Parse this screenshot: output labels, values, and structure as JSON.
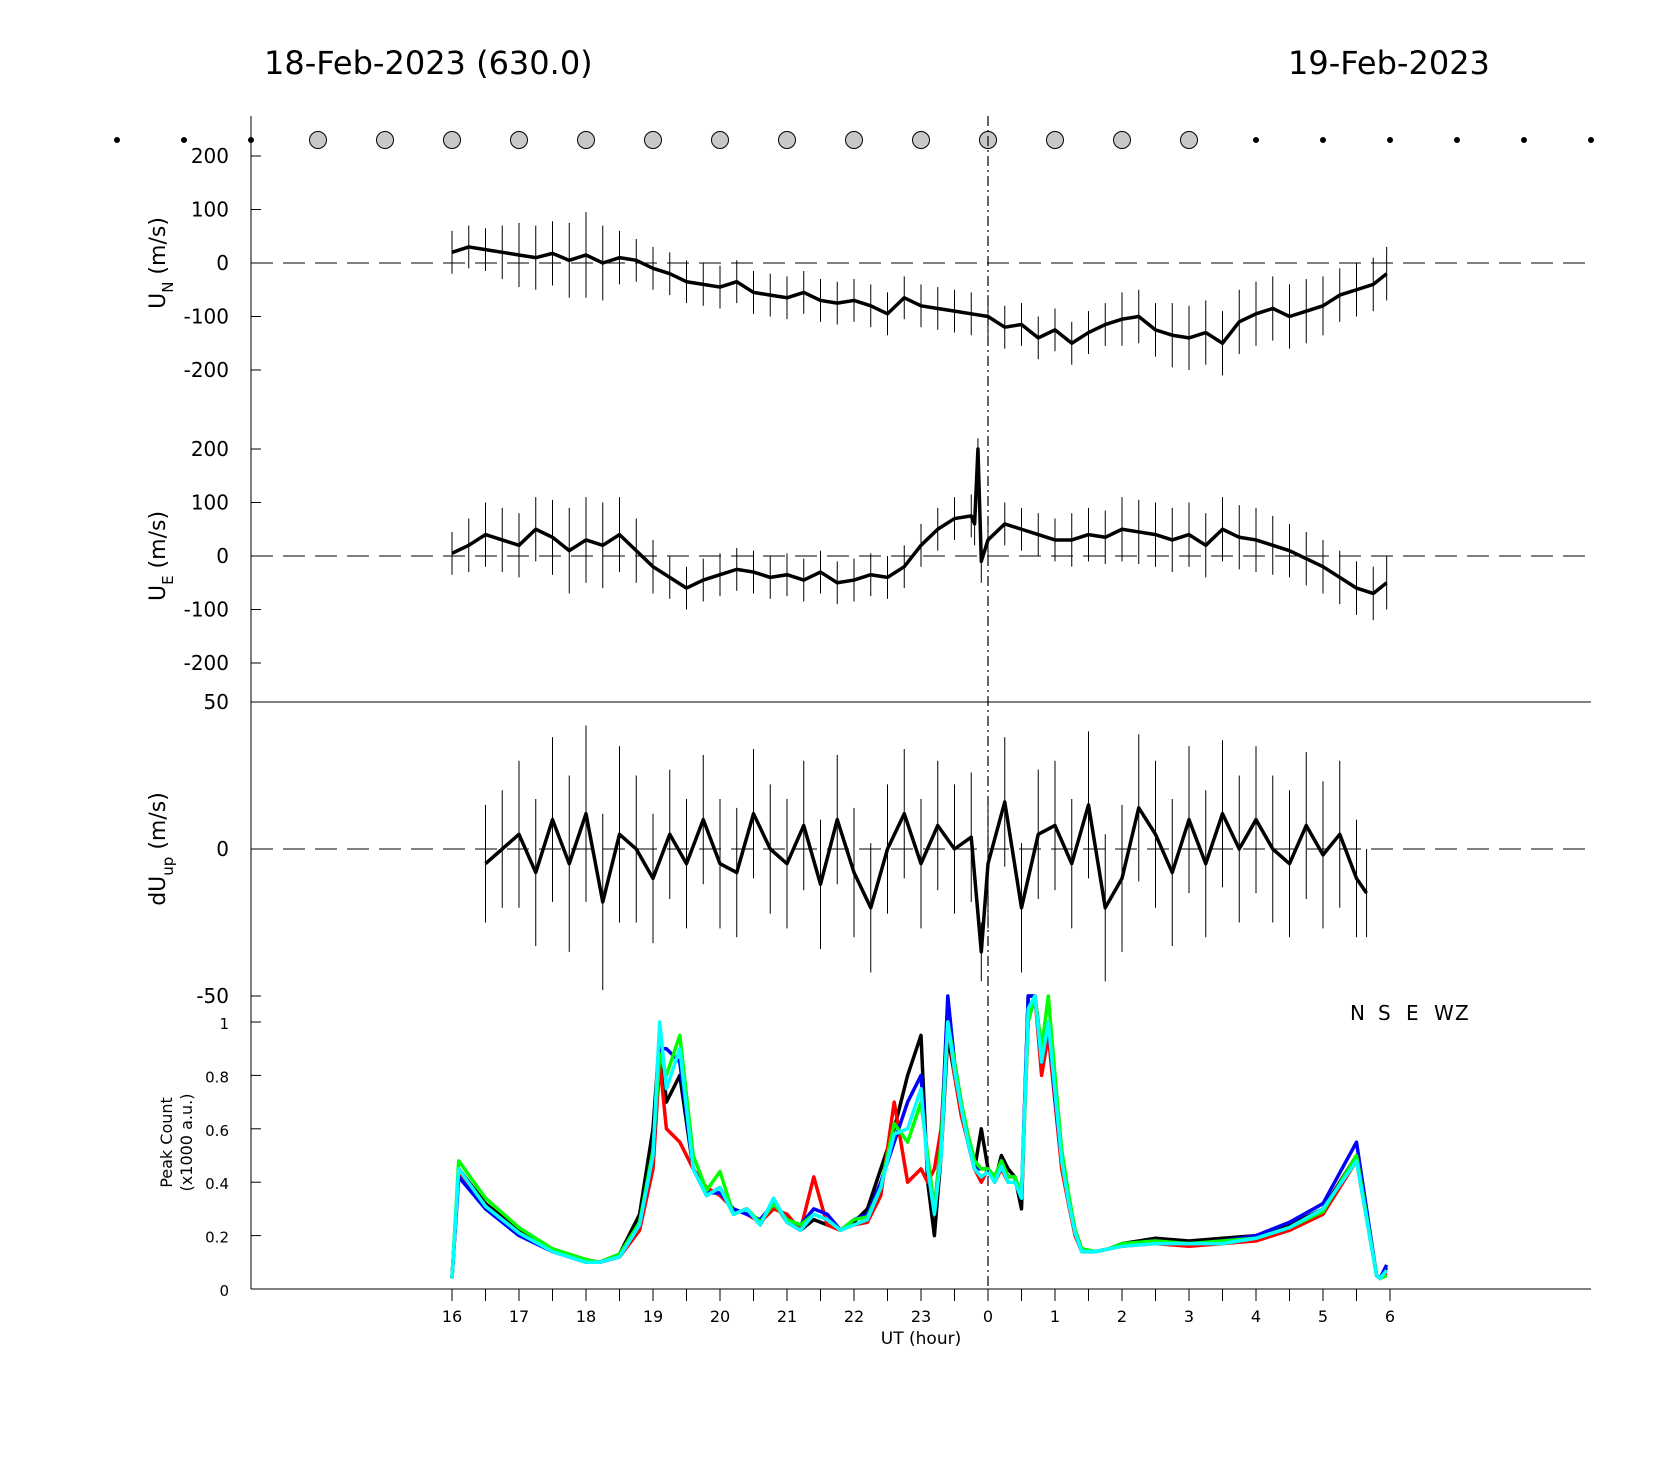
{
  "header": {
    "left_date": "18-Feb-2023 (630.0)",
    "right_date": "19-Feb-2023"
  },
  "moon_markers": {
    "hours": [
      -5,
      -4,
      -3,
      -2,
      -1,
      0,
      1,
      2,
      3,
      4,
      5,
      6,
      7,
      8,
      9,
      10,
      11,
      12,
      13,
      14,
      15,
      16,
      17
    ],
    "large_from": -2,
    "large_to": 11,
    "fill": "#c8c8c8"
  },
  "chart_data": [
    {
      "type": "line",
      "panel": "un",
      "ylabel": "U",
      "ylabel_sub": "N",
      "ylabel_unit": "(m/s)",
      "ylim": [
        -275,
        275
      ],
      "yticks": [
        -200,
        -100,
        0,
        100,
        200
      ],
      "ytick_labels": [
        "-200",
        "-100",
        "0",
        "100",
        "200"
      ],
      "zero_line": true,
      "x": [
        0,
        0.25,
        0.5,
        0.75,
        1,
        1.25,
        1.5,
        1.75,
        2,
        2.25,
        2.5,
        2.75,
        3,
        3.25,
        3.5,
        3.75,
        4,
        4.25,
        4.5,
        4.75,
        5,
        5.25,
        5.5,
        5.75,
        6,
        6.25,
        6.5,
        6.75,
        7,
        7.25,
        7.5,
        7.75,
        8,
        8.25,
        8.5,
        8.75,
        9,
        9.25,
        9.5,
        9.75,
        10,
        10.25,
        10.5,
        10.75,
        11,
        11.25,
        11.5,
        11.75,
        12,
        12.25,
        12.5,
        12.75,
        13,
        13.25,
        13.5,
        13.75,
        13.95
      ],
      "values": [
        20,
        30,
        25,
        20,
        15,
        10,
        18,
        5,
        15,
        0,
        10,
        5,
        -10,
        -20,
        -35,
        -40,
        -45,
        -35,
        -55,
        -60,
        -65,
        -55,
        -70,
        -75,
        -70,
        -80,
        -95,
        -65,
        -80,
        -85,
        -90,
        -95,
        -100,
        -120,
        -115,
        -140,
        -125,
        -150,
        -130,
        -115,
        -105,
        -100,
        -125,
        -135,
        -140,
        -130,
        -150,
        -110,
        -95,
        -85,
        -100,
        -90,
        -80,
        -60,
        -50,
        -40,
        -20
      ],
      "error_bars": [
        40,
        40,
        40,
        50,
        60,
        60,
        60,
        70,
        80,
        70,
        50,
        40,
        40,
        40,
        40,
        40,
        40,
        40,
        40,
        40,
        40,
        40,
        40,
        40,
        40,
        40,
        40,
        40,
        40,
        40,
        40,
        40,
        40,
        40,
        40,
        40,
        40,
        40,
        40,
        40,
        50,
        50,
        50,
        60,
        60,
        60,
        60,
        60,
        60,
        60,
        60,
        60,
        55,
        50,
        50,
        50,
        50
      ],
      "series_color": "#000000"
    },
    {
      "type": "line",
      "panel": "ue",
      "ylabel": "U",
      "ylabel_sub": "E",
      "ylabel_unit": "(m/s)",
      "ylim": [
        -275,
        275
      ],
      "yticks": [
        -200,
        -100,
        0,
        100,
        200
      ],
      "ytick_labels": [
        "-200",
        "-100",
        "0",
        "100",
        "200"
      ],
      "zero_line": true,
      "x": [
        0,
        0.25,
        0.5,
        0.75,
        1,
        1.25,
        1.5,
        1.75,
        2,
        2.25,
        2.5,
        2.75,
        3,
        3.25,
        3.5,
        3.75,
        4,
        4.25,
        4.5,
        4.75,
        5,
        5.25,
        5.5,
        5.75,
        6,
        6.25,
        6.5,
        6.75,
        7,
        7.25,
        7.5,
        7.75,
        7.8,
        7.85,
        7.9,
        8,
        8.25,
        8.5,
        8.75,
        9,
        9.25,
        9.5,
        9.75,
        10,
        10.25,
        10.5,
        10.75,
        11,
        11.25,
        11.5,
        11.75,
        12,
        12.25,
        12.5,
        12.75,
        13,
        13.25,
        13.5,
        13.75,
        13.95
      ],
      "values": [
        5,
        20,
        40,
        30,
        20,
        50,
        35,
        10,
        30,
        20,
        40,
        10,
        -20,
        -40,
        -60,
        -45,
        -35,
        -25,
        -30,
        -40,
        -35,
        -45,
        -30,
        -50,
        -45,
        -35,
        -40,
        -20,
        20,
        50,
        70,
        75,
        60,
        200,
        -10,
        30,
        60,
        50,
        40,
        30,
        30,
        40,
        35,
        50,
        45,
        40,
        30,
        40,
        20,
        50,
        35,
        30,
        20,
        10,
        -5,
        -20,
        -40,
        -60,
        -70,
        -50
      ],
      "error_bars": [
        40,
        50,
        60,
        60,
        60,
        60,
        70,
        80,
        80,
        80,
        70,
        60,
        50,
        40,
        40,
        40,
        40,
        40,
        40,
        40,
        40,
        40,
        40,
        40,
        40,
        40,
        40,
        40,
        40,
        40,
        40,
        40,
        40,
        20,
        40,
        40,
        40,
        40,
        40,
        40,
        50,
        50,
        50,
        60,
        60,
        60,
        60,
        60,
        60,
        60,
        60,
        60,
        55,
        50,
        50,
        50,
        50,
        50,
        50,
        50
      ],
      "series_color": "#000000"
    },
    {
      "type": "line",
      "panel": "dup",
      "ylabel": "dU",
      "ylabel_sub": "up",
      "ylabel_unit": "(m/s)",
      "ylim": [
        -50,
        50
      ],
      "yticks": [
        -50,
        0,
        50
      ],
      "ytick_labels": [
        "-50",
        "0",
        "50"
      ],
      "zero_line": true,
      "x": [
        0.5,
        0.75,
        1,
        1.25,
        1.5,
        1.75,
        2,
        2.25,
        2.5,
        2.75,
        3,
        3.25,
        3.5,
        3.75,
        4,
        4.25,
        4.5,
        4.75,
        5,
        5.25,
        5.5,
        5.75,
        6,
        6.25,
        6.5,
        6.75,
        7,
        7.25,
        7.5,
        7.75,
        7.9,
        8,
        8.25,
        8.5,
        8.75,
        9,
        9.25,
        9.5,
        9.75,
        10,
        10.25,
        10.5,
        10.75,
        11,
        11.25,
        11.5,
        11.75,
        12,
        12.25,
        12.5,
        12.75,
        13,
        13.25,
        13.5,
        13.65
      ],
      "values": [
        -5,
        0,
        5,
        -8,
        10,
        -5,
        12,
        -18,
        5,
        0,
        -10,
        5,
        -5,
        10,
        -5,
        -8,
        12,
        0,
        -5,
        8,
        -12,
        10,
        -8,
        -20,
        0,
        12,
        -5,
        8,
        0,
        4,
        -35,
        -5,
        16,
        -20,
        5,
        8,
        -5,
        15,
        -20,
        -10,
        14,
        5,
        -8,
        10,
        -5,
        12,
        0,
        10,
        0,
        -5,
        8,
        -2,
        5,
        -10,
        -15
      ],
      "error_bars": [
        20,
        20,
        25,
        25,
        28,
        30,
        30,
        30,
        30,
        25,
        22,
        22,
        22,
        22,
        22,
        22,
        22,
        22,
        22,
        22,
        22,
        22,
        22,
        22,
        22,
        22,
        22,
        22,
        22,
        22,
        10,
        22,
        22,
        22,
        22,
        22,
        22,
        25,
        25,
        25,
        25,
        25,
        25,
        25,
        25,
        25,
        25,
        25,
        25,
        25,
        25,
        25,
        25,
        20,
        15
      ],
      "series_color": "#000000"
    },
    {
      "type": "line",
      "panel": "peaks",
      "ylabel": "Peak Count",
      "ylabel2": "(x1000 a.u.)",
      "ylim": [
        0,
        1.1
      ],
      "yticks": [
        0,
        0.2,
        0.4,
        0.6,
        0.8,
        1
      ],
      "ytick_labels": [
        "0",
        "0.2",
        "0.4",
        "0.6",
        "0.8",
        "1"
      ],
      "x_axis_label": "UT (hour)",
      "x_ticks": [
        16,
        17,
        18,
        19,
        20,
        21,
        22,
        23,
        0,
        1,
        2,
        3,
        4,
        5,
        6
      ],
      "legend": [
        "N",
        "S",
        "E",
        "W",
        "Z"
      ],
      "legend_position": "top-right",
      "x": [
        0,
        0.1,
        0.5,
        1,
        1.5,
        2,
        2.2,
        2.5,
        2.8,
        3.0,
        3.1,
        3.2,
        3.4,
        3.6,
        3.8,
        4,
        4.2,
        4.4,
        4.6,
        4.8,
        5,
        5.2,
        5.4,
        5.6,
        5.8,
        6,
        6.2,
        6.4,
        6.6,
        6.8,
        7,
        7.1,
        7.2,
        7.3,
        7.4,
        7.5,
        7.6,
        7.7,
        7.8,
        7.9,
        8,
        8.1,
        8.2,
        8.3,
        8.4,
        8.5,
        8.6,
        8.7,
        8.8,
        8.9,
        9,
        9.1,
        9.2,
        9.3,
        9.4,
        9.6,
        9.8,
        10,
        10.5,
        11,
        11.5,
        12,
        12.5,
        13,
        13.5,
        13.8,
        13.85,
        13.95
      ],
      "series": [
        {
          "name": "N",
          "color": "#000000",
          "values": [
            0.04,
            0.45,
            0.32,
            0.22,
            0.15,
            0.11,
            0.1,
            0.13,
            0.28,
            0.6,
            0.95,
            0.7,
            0.8,
            0.45,
            0.35,
            0.38,
            0.28,
            0.3,
            0.24,
            0.33,
            0.25,
            0.22,
            0.26,
            0.24,
            0.22,
            0.25,
            0.3,
            0.45,
            0.6,
            0.8,
            0.95,
            0.4,
            0.2,
            0.5,
            0.95,
            0.8,
            0.7,
            0.55,
            0.45,
            0.6,
            0.45,
            0.4,
            0.5,
            0.45,
            0.42,
            0.3,
            1.1,
            1.1,
            0.9,
            1.0,
            0.75,
            0.5,
            0.35,
            0.22,
            0.15,
            0.14,
            0.15,
            0.17,
            0.19,
            0.18,
            0.19,
            0.2,
            0.24,
            0.3,
            0.5,
            0.05,
            0.04,
            0.08
          ]
        },
        {
          "name": "S",
          "color": "#ff0000",
          "values": [
            0.04,
            0.44,
            0.31,
            0.21,
            0.14,
            0.11,
            0.1,
            0.12,
            0.22,
            0.45,
            0.85,
            0.6,
            0.55,
            0.45,
            0.38,
            0.35,
            0.3,
            0.28,
            0.25,
            0.3,
            0.28,
            0.22,
            0.42,
            0.24,
            0.22,
            0.24,
            0.25,
            0.35,
            0.7,
            0.4,
            0.45,
            0.4,
            0.45,
            0.6,
            1.0,
            0.8,
            0.65,
            0.55,
            0.45,
            0.4,
            0.45,
            0.4,
            0.45,
            0.4,
            0.4,
            0.35,
            1.0,
            1.1,
            0.8,
            0.95,
            0.7,
            0.45,
            0.32,
            0.2,
            0.14,
            0.14,
            0.15,
            0.16,
            0.17,
            0.16,
            0.17,
            0.18,
            0.22,
            0.28,
            0.48,
            0.05,
            0.04,
            0.06
          ]
        },
        {
          "name": "E",
          "color": "#0000ff",
          "values": [
            0.04,
            0.42,
            0.3,
            0.2,
            0.14,
            0.1,
            0.1,
            0.12,
            0.24,
            0.5,
            0.9,
            0.9,
            0.85,
            0.45,
            0.36,
            0.36,
            0.3,
            0.28,
            0.26,
            0.32,
            0.26,
            0.24,
            0.3,
            0.28,
            0.22,
            0.26,
            0.28,
            0.4,
            0.55,
            0.7,
            0.8,
            0.45,
            0.3,
            0.55,
            1.1,
            0.85,
            0.7,
            0.55,
            0.45,
            0.45,
            0.45,
            0.42,
            0.48,
            0.42,
            0.42,
            0.35,
            1.1,
            1.1,
            0.85,
            1.0,
            0.72,
            0.48,
            0.34,
            0.21,
            0.14,
            0.14,
            0.15,
            0.17,
            0.18,
            0.17,
            0.18,
            0.2,
            0.25,
            0.32,
            0.55,
            0.05,
            0.04,
            0.09
          ]
        },
        {
          "name": "W",
          "color": "#00ff00",
          "values": [
            0.04,
            0.48,
            0.34,
            0.23,
            0.15,
            0.11,
            0.1,
            0.13,
            0.25,
            0.52,
            0.88,
            0.8,
            0.95,
            0.5,
            0.37,
            0.44,
            0.28,
            0.3,
            0.25,
            0.32,
            0.26,
            0.24,
            0.28,
            0.26,
            0.22,
            0.26,
            0.27,
            0.38,
            0.62,
            0.55,
            0.7,
            0.5,
            0.3,
            0.55,
            1.0,
            0.85,
            0.7,
            0.58,
            0.48,
            0.45,
            0.45,
            0.42,
            0.48,
            0.42,
            0.42,
            0.36,
            1.0,
            1.1,
            0.9,
            1.1,
            0.8,
            0.52,
            0.36,
            0.22,
            0.15,
            0.14,
            0.15,
            0.17,
            0.18,
            0.17,
            0.18,
            0.19,
            0.23,
            0.29,
            0.5,
            0.05,
            0.04,
            0.05
          ]
        },
        {
          "name": "Z",
          "color": "#00ffff",
          "values": [
            0.04,
            0.45,
            0.31,
            0.21,
            0.14,
            0.1,
            0.1,
            0.12,
            0.24,
            0.5,
            1.0,
            0.75,
            0.9,
            0.45,
            0.35,
            0.38,
            0.28,
            0.3,
            0.24,
            0.34,
            0.25,
            0.22,
            0.28,
            0.26,
            0.22,
            0.24,
            0.26,
            0.38,
            0.58,
            0.6,
            0.75,
            0.45,
            0.28,
            0.5,
            1.0,
            0.82,
            0.68,
            0.55,
            0.45,
            0.42,
            0.44,
            0.4,
            0.46,
            0.4,
            0.4,
            0.34,
            1.05,
            1.1,
            0.85,
            1.0,
            0.74,
            0.48,
            0.33,
            0.21,
            0.14,
            0.14,
            0.15,
            0.16,
            0.17,
            0.17,
            0.17,
            0.19,
            0.23,
            0.3,
            0.48,
            0.05,
            0.04,
            0.07
          ]
        }
      ]
    }
  ]
}
